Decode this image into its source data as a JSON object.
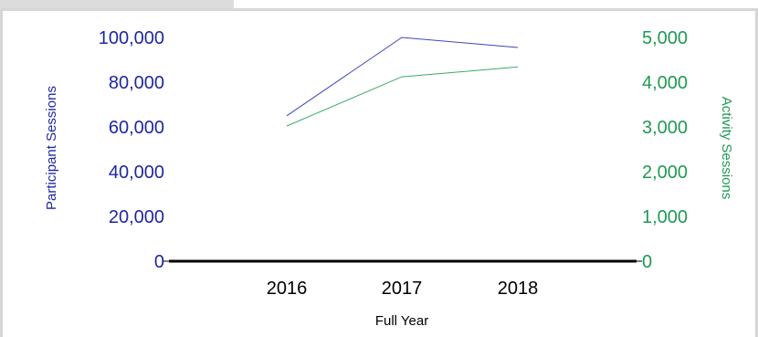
{
  "chart_data": {
    "type": "line",
    "title": "",
    "xlabel": "Full Year",
    "ylabel_left": "Participant Sessions",
    "ylabel_right": "Activity Sessions",
    "categories": [
      "2016",
      "2017",
      "2018"
    ],
    "ylim_left": [
      0,
      100000
    ],
    "ylim_right": [
      0,
      5000
    ],
    "yticks_left": [
      "0",
      "20,000",
      "40,000",
      "60,000",
      "80,000",
      "100,000"
    ],
    "yticks_right": [
      "0",
      "1,000",
      "2,000",
      "3,000",
      "4,000",
      "5,000"
    ],
    "grid": false,
    "series": [
      {
        "axis": "left",
        "color": "#3f45b5",
        "values": [
          65000,
          100000,
          95500
        ]
      },
      {
        "axis": "right",
        "color": "#3aaa68",
        "values": [
          3020,
          4120,
          4340
        ]
      }
    ]
  }
}
